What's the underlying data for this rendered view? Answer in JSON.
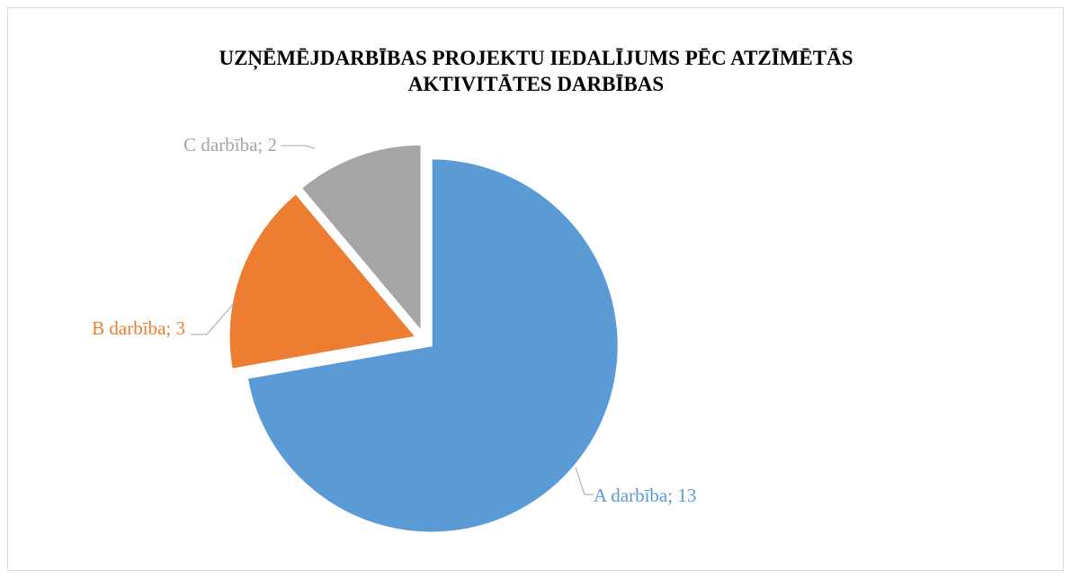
{
  "chart_data": {
    "type": "pie",
    "title": "UZŅĒMĒJDARBĪBAS PROJEKTU IEDALĪJUMS PĒC ATZĪMĒTĀS AKTIVITĀTES DARBĪBAS",
    "categories": [
      "A darbība",
      "B darbība",
      "C darbība"
    ],
    "values": [
      13,
      3,
      2
    ],
    "colors": [
      "#5b9bd5",
      "#ed7d31",
      "#a5a5a5"
    ],
    "label_separator": "; "
  }
}
